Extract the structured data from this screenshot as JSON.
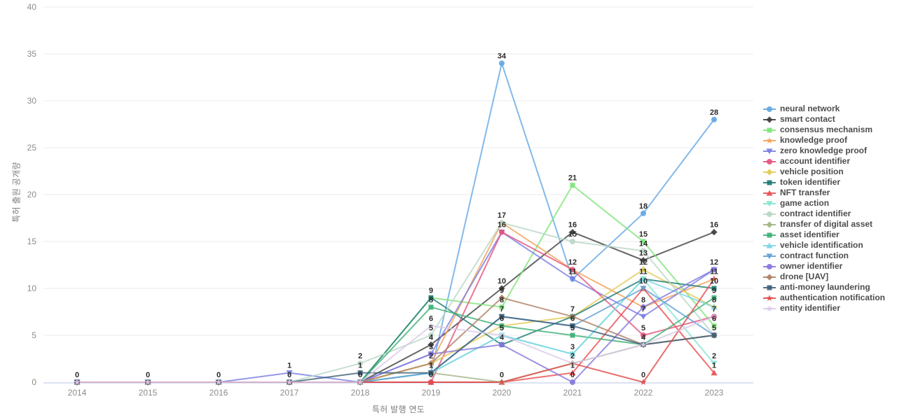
{
  "chart_data": {
    "type": "line",
    "title": "",
    "xlabel": "특허 발행 연도",
    "ylabel": "특허 출원 공개량",
    "x": [
      2014,
      2015,
      2016,
      2017,
      2018,
      2019,
      2020,
      2021,
      2022,
      2023
    ],
    "ylim": [
      0,
      40
    ],
    "y_ticks": [
      0,
      5,
      10,
      15,
      20,
      25,
      30,
      35,
      40
    ],
    "grid": true,
    "legend_position": "right",
    "series": [
      {
        "name": "neural network",
        "color": "#64a7e3",
        "marker": "circle",
        "values": [
          0,
          0,
          0,
          0,
          0,
          1,
          34,
          11,
          18,
          28
        ]
      },
      {
        "name": "smart contact",
        "color": "#3f3f3f",
        "marker": "diamond",
        "values": [
          0,
          0,
          0,
          0,
          0,
          4,
          10,
          16,
          13,
          16
        ]
      },
      {
        "name": "consensus mechanism",
        "color": "#7ee57a",
        "marker": "square",
        "values": [
          0,
          0,
          0,
          0,
          0,
          9,
          8,
          21,
          15,
          6
        ]
      },
      {
        "name": "knowledge proof",
        "color": "#f4a259",
        "marker": "star",
        "values": [
          0,
          0,
          0,
          0,
          0,
          2,
          17,
          12,
          8,
          11
        ]
      },
      {
        "name": "zero knowledge proof",
        "color": "#7a7de2",
        "marker": "triangle-down",
        "values": [
          0,
          0,
          0,
          1,
          0,
          3,
          16,
          11,
          7,
          12
        ]
      },
      {
        "name": "account identifier",
        "color": "#e4547e",
        "marker": "circle",
        "values": [
          0,
          0,
          0,
          0,
          0,
          0,
          16,
          12,
          5,
          7
        ]
      },
      {
        "name": "vehicle position",
        "color": "#e2cc55",
        "marker": "diamond",
        "values": [
          0,
          0,
          0,
          0,
          0,
          2,
          6,
          7,
          12,
          8
        ]
      },
      {
        "name": "token identifier",
        "color": "#1f7c73",
        "marker": "square",
        "values": [
          0,
          0,
          0,
          0,
          0,
          9,
          4,
          7,
          11,
          10
        ]
      },
      {
        "name": "NFT transfer",
        "color": "#e84f4f",
        "marker": "triangle-up",
        "values": [
          0,
          0,
          0,
          0,
          0,
          0,
          0,
          1,
          10,
          1
        ]
      },
      {
        "name": "game action",
        "color": "#82e5d2",
        "marker": "triangle-down",
        "values": [
          0,
          0,
          0,
          0,
          0,
          1,
          5,
          3,
          11,
          2
        ]
      },
      {
        "name": "contract identifier",
        "color": "#bad7c5",
        "marker": "circle",
        "values": [
          0,
          0,
          0,
          0,
          2,
          5,
          17,
          15,
          14,
          5
        ]
      },
      {
        "name": "transfer of digital asset",
        "color": "#a4b586",
        "marker": "diamond",
        "values": [
          0,
          0,
          0,
          0,
          0,
          1,
          0,
          2,
          4,
          5
        ]
      },
      {
        "name": "asset identifier",
        "color": "#3eb077",
        "marker": "square",
        "values": [
          0,
          0,
          0,
          0,
          0,
          8,
          6,
          5,
          4,
          9
        ]
      },
      {
        "name": "vehicle identification",
        "color": "#7cd4e6",
        "marker": "triangle-up",
        "values": [
          0,
          0,
          0,
          0,
          0,
          1,
          5,
          3,
          11,
          8
        ]
      },
      {
        "name": "contract function",
        "color": "#63a0d4",
        "marker": "triangle-down",
        "values": [
          0,
          0,
          0,
          0,
          0,
          1,
          7,
          6,
          10,
          5
        ]
      },
      {
        "name": "owner identifier",
        "color": "#8478dc",
        "marker": "circle",
        "values": [
          0,
          0,
          0,
          0,
          0,
          3,
          4,
          0,
          8,
          12
        ]
      },
      {
        "name": "drone [UAV]",
        "color": "#ae8164",
        "marker": "diamond",
        "values": [
          0,
          0,
          0,
          0,
          0,
          2,
          9,
          7,
          4,
          5
        ]
      },
      {
        "name": "anti-money laundering",
        "color": "#3f607a",
        "marker": "square",
        "values": [
          0,
          0,
          0,
          0,
          1,
          1,
          7,
          6,
          4,
          5
        ]
      },
      {
        "name": "authentication notification",
        "color": "#e04b4b",
        "marker": "star",
        "values": [
          0,
          0,
          0,
          0,
          0,
          0,
          0,
          2,
          0,
          11
        ]
      },
      {
        "name": "entity identifier",
        "color": "#dbc9e8",
        "marker": "star",
        "values": [
          0,
          0,
          0,
          0,
          0,
          6,
          5,
          2,
          4,
          7
        ]
      }
    ]
  }
}
